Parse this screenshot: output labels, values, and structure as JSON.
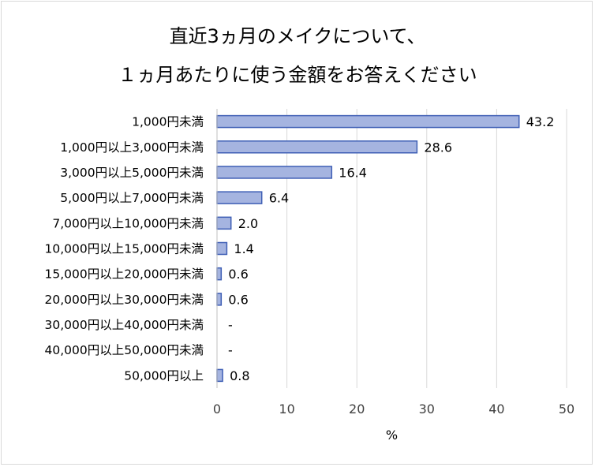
{
  "chart_data": {
    "type": "bar",
    "orientation": "horizontal",
    "title_line1": "直近3ヵ月のメイクについて、",
    "title_line2": "１ヵ月あたりに使う金額をお答えください",
    "categories": [
      "1,000円未満",
      "1,000円以上3,000円未満",
      "3,000円以上5,000円未満",
      "5,000円以上7,000円未満",
      "7,000円以上10,000円未満",
      "10,000円以上15,000円未満",
      "15,000円以上20,000円未満",
      "20,000円以上30,000円未満",
      "30,000円以上40,000円未満",
      "40,000円以上50,000円未満",
      "50,000円以上"
    ],
    "values": [
      43.2,
      28.6,
      16.4,
      6.4,
      2.0,
      1.4,
      0.6,
      0.6,
      null,
      null,
      0.8
    ],
    "value_labels": [
      "43.2",
      "28.6",
      "16.4",
      "6.4",
      "2.0",
      "1.4",
      "0.6",
      "0.6",
      "-",
      "-",
      "0.8"
    ],
    "xlabel": "%",
    "xlim": [
      0,
      50
    ],
    "xticks": [
      "0",
      "10",
      "20",
      "30",
      "40",
      "50"
    ],
    "grid": true,
    "legend": "none",
    "bar_color": "#a5b4e0",
    "bar_edge_color": "#3f5fb5"
  }
}
